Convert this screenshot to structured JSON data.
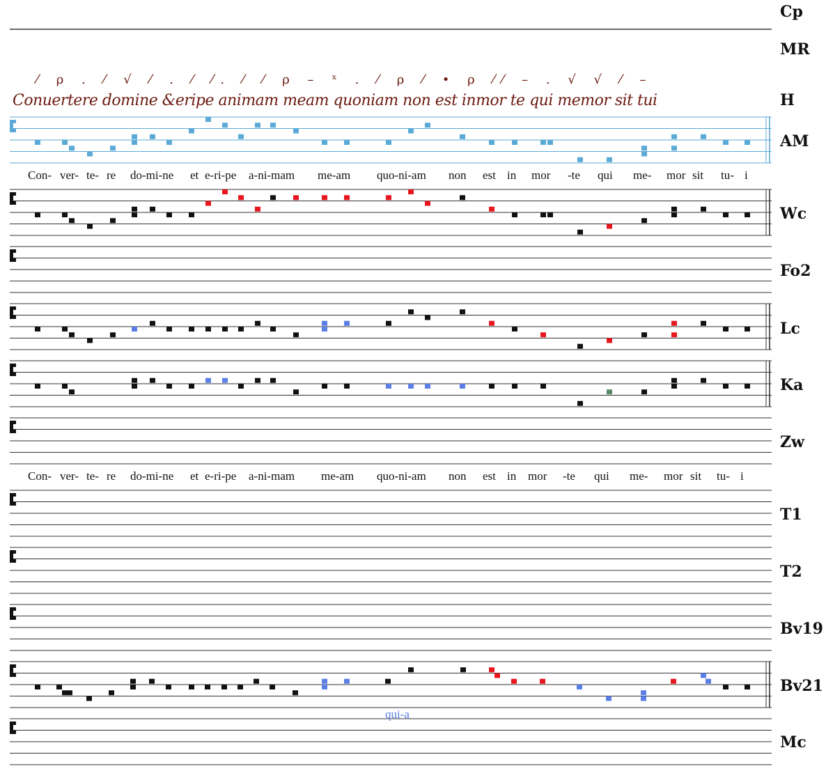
{
  "colors": {
    "black": "#111111",
    "red": "#e8161d",
    "blue": "#5b7fe6",
    "lightblue": "#5aa9d6",
    "green": "#5a8a6a",
    "manuscript": "#6b1a10",
    "staff": "#333333"
  },
  "sources": [
    "Cp",
    "MR",
    "H",
    "AM",
    "Wc",
    "Fo2",
    "Lc",
    "Ka",
    "Zw",
    "T1",
    "T2",
    "Bv19",
    "Bv21",
    "Mc"
  ],
  "manuscript": {
    "neumes": "⁄ ρ . ⁄ √ ⁄ . ⁄ ⁄. ⁄ ⁄ ρ – ˣ . ⁄ ρ ⁄ • ρ ⁄⁄ – . √ √ ⁄ –",
    "text": "Conuertere domine &eripe animam meam quoniam non est inmor te qui memor sit tui"
  },
  "lyrics_1": [
    "Con-",
    "ver-",
    "te-",
    "re",
    "do-mi-ne",
    "et",
    "e-ri-pe",
    "a-ni-mam",
    "me-am",
    "quo-ni-am",
    "non",
    "est",
    "in",
    "mor",
    "-te",
    "qui",
    "me-",
    "mor",
    "sit",
    "tu-",
    "i"
  ],
  "lyrics_2": [
    "Con-",
    "ver-",
    "te-",
    "re",
    "do-mi-ne",
    "et",
    "e-ri-pe",
    "a-ni-mam",
    "me-am",
    "quo-ni-am",
    "non",
    "est",
    "in",
    "mor",
    "-te",
    "qui",
    "me-",
    "mor",
    "sit",
    "tu-",
    "i"
  ],
  "variant_text": "qui-a",
  "notes": {
    "AM": [
      [
        54,
        "0",
        "lb"
      ],
      [
        93,
        "0",
        "lb"
      ],
      [
        103,
        "-1",
        "lb"
      ],
      [
        129,
        "-2",
        "lb"
      ],
      [
        162,
        "-1",
        "lb"
      ],
      [
        193,
        "1",
        "lb"
      ],
      [
        193,
        "0",
        "lb"
      ],
      [
        219,
        "1",
        "lb"
      ],
      [
        243,
        "0",
        "lb"
      ],
      [
        275,
        "2",
        "lb"
      ],
      [
        299,
        "4",
        "lb"
      ],
      [
        323,
        "3",
        "lb"
      ],
      [
        346,
        "1",
        "lb"
      ],
      [
        370,
        "3",
        "lb"
      ],
      [
        392,
        "3",
        "lb"
      ],
      [
        425,
        "2",
        "lb"
      ],
      [
        466,
        "0",
        "lb"
      ],
      [
        498,
        "0",
        "lb"
      ],
      [
        558,
        "0",
        "lb"
      ],
      [
        590,
        "2",
        "lb"
      ],
      [
        614,
        "3",
        "lb"
      ],
      [
        664,
        "1",
        "lb"
      ],
      [
        706,
        "0",
        "lb"
      ],
      [
        739,
        "0",
        "lb"
      ],
      [
        780,
        "0",
        "lb"
      ],
      [
        790,
        "0",
        "lb"
      ],
      [
        833,
        "-3",
        "lb"
      ],
      [
        875,
        "-3",
        "lb"
      ],
      [
        925,
        "-2",
        "lb"
      ],
      [
        925,
        "-1",
        "lb"
      ],
      [
        968,
        "1",
        "lb"
      ],
      [
        968,
        "-1",
        "lb"
      ],
      [
        1010,
        "1",
        "lb"
      ],
      [
        1042,
        "0",
        "lb"
      ],
      [
        1073,
        "0",
        "lb"
      ]
    ],
    "Wc": [
      [
        54,
        "0",
        "k"
      ],
      [
        93,
        "0",
        "k"
      ],
      [
        103,
        "-1",
        "k"
      ],
      [
        129,
        "-2",
        "k"
      ],
      [
        162,
        "-1",
        "k"
      ],
      [
        193,
        "1",
        "k"
      ],
      [
        193,
        "0",
        "k"
      ],
      [
        219,
        "1",
        "k"
      ],
      [
        243,
        "0",
        "k"
      ],
      [
        275,
        "0",
        "k"
      ],
      [
        299,
        "2",
        "r"
      ],
      [
        323,
        "4",
        "r"
      ],
      [
        346,
        "3",
        "r"
      ],
      [
        370,
        "1",
        "r"
      ],
      [
        392,
        "3",
        "k"
      ],
      [
        425,
        "3",
        "r"
      ],
      [
        466,
        "3",
        "r"
      ],
      [
        498,
        "3",
        "r"
      ],
      [
        558,
        "3",
        "r"
      ],
      [
        590,
        "4",
        "r"
      ],
      [
        614,
        "2",
        "r"
      ],
      [
        664,
        "3",
        "k"
      ],
      [
        706,
        "1",
        "r"
      ],
      [
        739,
        "0",
        "k"
      ],
      [
        780,
        "0",
        "k"
      ],
      [
        790,
        "0",
        "k"
      ],
      [
        833,
        "-3",
        "k"
      ],
      [
        875,
        "-2",
        "r"
      ],
      [
        925,
        "-1",
        "k"
      ],
      [
        968,
        "1",
        "k"
      ],
      [
        968,
        "0",
        "k"
      ],
      [
        1010,
        "1",
        "k"
      ],
      [
        1042,
        "0",
        "k"
      ],
      [
        1073,
        "0",
        "k"
      ]
    ],
    "Lc": [
      [
        54,
        "0",
        "k"
      ],
      [
        93,
        "0",
        "k"
      ],
      [
        103,
        "-1",
        "k"
      ],
      [
        129,
        "-2",
        "k"
      ],
      [
        162,
        "-1",
        "k"
      ],
      [
        193,
        "0",
        "b"
      ],
      [
        219,
        "1",
        "k"
      ],
      [
        243,
        "0",
        "k"
      ],
      [
        275,
        "0",
        "k"
      ],
      [
        299,
        "0",
        "k"
      ],
      [
        323,
        "0",
        "k"
      ],
      [
        346,
        "0",
        "k"
      ],
      [
        370,
        "1",
        "k"
      ],
      [
        392,
        "0",
        "k"
      ],
      [
        425,
        "-1",
        "k"
      ],
      [
        466,
        "1",
        "b"
      ],
      [
        466,
        "0",
        "b"
      ],
      [
        498,
        "1",
        "b"
      ],
      [
        558,
        "1",
        "k"
      ],
      [
        590,
        "3",
        "k"
      ],
      [
        614,
        "2",
        "k"
      ],
      [
        664,
        "3",
        "k"
      ],
      [
        706,
        "1",
        "r"
      ],
      [
        739,
        "0",
        "k"
      ],
      [
        780,
        "-1",
        "r"
      ],
      [
        833,
        "-3",
        "k"
      ],
      [
        875,
        "-2",
        "r"
      ],
      [
        925,
        "-1",
        "k"
      ],
      [
        968,
        "1",
        "r"
      ],
      [
        968,
        "-1",
        "r"
      ],
      [
        1010,
        "1",
        "k"
      ],
      [
        1042,
        "0",
        "k"
      ],
      [
        1073,
        "0",
        "k"
      ]
    ],
    "Ka": [
      [
        54,
        "0",
        "k"
      ],
      [
        93,
        "0",
        "k"
      ],
      [
        103,
        "-1",
        "k"
      ],
      [
        193,
        "1",
        "k"
      ],
      [
        193,
        "0",
        "k"
      ],
      [
        219,
        "1",
        "k"
      ],
      [
        243,
        "0",
        "k"
      ],
      [
        275,
        "0",
        "k"
      ],
      [
        299,
        "1",
        "b"
      ],
      [
        323,
        "1",
        "b"
      ],
      [
        346,
        "0",
        "k"
      ],
      [
        370,
        "1",
        "k"
      ],
      [
        392,
        "1",
        "k"
      ],
      [
        425,
        "-1",
        "k"
      ],
      [
        466,
        "0",
        "k"
      ],
      [
        498,
        "0",
        "k"
      ],
      [
        558,
        "0",
        "b"
      ],
      [
        590,
        "0",
        "b"
      ],
      [
        614,
        "0",
        "b"
      ],
      [
        664,
        "0",
        "b"
      ],
      [
        706,
        "0",
        "k"
      ],
      [
        739,
        "0",
        "k"
      ],
      [
        780,
        "0",
        "k"
      ],
      [
        833,
        "-3",
        "k"
      ],
      [
        875,
        "-1",
        "g"
      ],
      [
        925,
        "-1",
        "k"
      ],
      [
        968,
        "1",
        "k"
      ],
      [
        968,
        "0",
        "k"
      ],
      [
        1010,
        "1",
        "k"
      ],
      [
        1042,
        "0",
        "k"
      ],
      [
        1073,
        "0",
        "k"
      ]
    ],
    "Bv21": [
      [
        54,
        "0",
        "k"
      ],
      [
        85,
        "0",
        "k"
      ],
      [
        93,
        "-1",
        "k"
      ],
      [
        100,
        "-1",
        "k"
      ],
      [
        128,
        "-2",
        "k"
      ],
      [
        160,
        "-1",
        "k"
      ],
      [
        191,
        "1",
        "k"
      ],
      [
        191,
        "0",
        "k"
      ],
      [
        218,
        "1",
        "k"
      ],
      [
        242,
        "0",
        "k"
      ],
      [
        275,
        "0",
        "k"
      ],
      [
        298,
        "0",
        "k"
      ],
      [
        322,
        "0",
        "k"
      ],
      [
        345,
        "0",
        "k"
      ],
      [
        368,
        "1",
        "k"
      ],
      [
        391,
        "0",
        "k"
      ],
      [
        424,
        "-1",
        "k"
      ],
      [
        466,
        "1",
        "b"
      ],
      [
        466,
        "0",
        "b"
      ],
      [
        498,
        "1",
        "b"
      ],
      [
        557,
        "1",
        "k"
      ],
      [
        590,
        "3",
        "k"
      ],
      [
        665,
        "3",
        "k"
      ],
      [
        706,
        "3",
        "r"
      ],
      [
        714,
        "2",
        "r"
      ],
      [
        738,
        "1",
        "r"
      ],
      [
        779,
        "1",
        "r"
      ],
      [
        832,
        "0",
        "b"
      ],
      [
        874,
        "-2",
        "b"
      ],
      [
        924,
        "-1",
        "b"
      ],
      [
        924,
        "-2",
        "b"
      ],
      [
        967,
        "1",
        "r"
      ],
      [
        1010,
        "2",
        "b"
      ],
      [
        1017,
        "1",
        "b"
      ],
      [
        1042,
        "0",
        "k"
      ],
      [
        1073,
        "0",
        "k"
      ]
    ]
  }
}
